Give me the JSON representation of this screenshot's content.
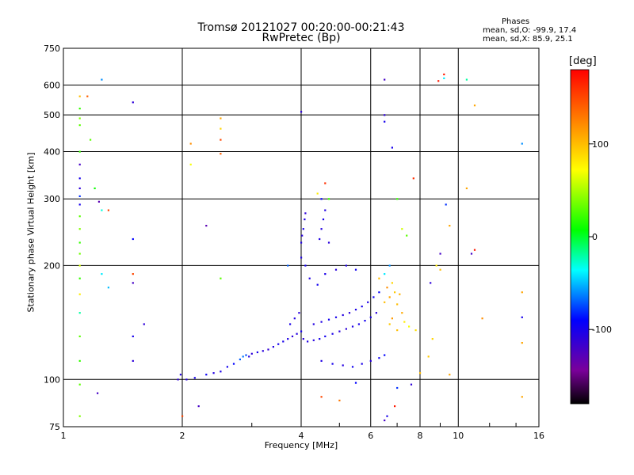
{
  "chart_data": {
    "type": "scatter",
    "title": "Tromsø 20121027 00:20:00-00:21:43",
    "subtitle": "RwPretec (Bp)",
    "xlabel": "Frequency [MHz]",
    "ylabel": "Stationary phase Virtual Height [km]",
    "xscale": "log",
    "yscale": "log",
    "xlim": [
      1,
      16
    ],
    "ylim": [
      75,
      750
    ],
    "x_ticks": [
      1,
      2,
      4,
      6,
      8,
      10,
      16
    ],
    "y_ticks": [
      75,
      100,
      200,
      300,
      400,
      500,
      600,
      750
    ],
    "grid": true,
    "stats": {
      "heading": "Phases",
      "line1": "mean, sd,O: -99.9, 17.4",
      "line2": "mean, sd,X:  85.9, 25.1"
    },
    "colorbar": {
      "label": "[deg]",
      "range": [
        -180,
        180
      ],
      "ticks": [
        100,
        0,
        -100
      ]
    },
    "points": [
      [
        1.95,
        100,
        -110
      ],
      [
        1.98,
        103,
        -105
      ],
      [
        2.05,
        100,
        -108
      ],
      [
        2.15,
        101,
        -100
      ],
      [
        2.3,
        103,
        -95
      ],
      [
        2.4,
        104,
        -105
      ],
      [
        2.5,
        105,
        -102
      ],
      [
        2.6,
        108,
        -98
      ],
      [
        2.7,
        110,
        -90
      ],
      [
        2.8,
        113,
        -70
      ],
      [
        2.85,
        115,
        -65
      ],
      [
        2.9,
        116,
        -75
      ],
      [
        2.95,
        115,
        -105
      ],
      [
        3.0,
        117,
        -110
      ],
      [
        3.1,
        118,
        -100
      ],
      [
        3.2,
        119,
        -108
      ],
      [
        3.3,
        120,
        -112
      ],
      [
        3.4,
        122,
        -105
      ],
      [
        3.5,
        124,
        -98
      ],
      [
        3.6,
        126,
        -100
      ],
      [
        3.7,
        128,
        -104
      ],
      [
        3.8,
        130,
        -110
      ],
      [
        3.9,
        132,
        -106
      ],
      [
        4.0,
        134,
        -100
      ],
      [
        3.75,
        140,
        -102
      ],
      [
        3.85,
        145,
        -105
      ],
      [
        3.95,
        150,
        -108
      ],
      [
        4.05,
        128,
        -110
      ],
      [
        4.15,
        126,
        -104
      ],
      [
        4.3,
        127,
        -106
      ],
      [
        4.45,
        128,
        -100
      ],
      [
        4.6,
        130,
        -98
      ],
      [
        4.8,
        132,
        -102
      ],
      [
        5.0,
        134,
        -108
      ],
      [
        5.2,
        136,
        -110
      ],
      [
        5.4,
        138,
        -104
      ],
      [
        5.6,
        140,
        -100
      ],
      [
        5.8,
        143,
        -98
      ],
      [
        6.0,
        146,
        -102
      ],
      [
        6.2,
        150,
        -108
      ],
      [
        4.3,
        140,
        -105
      ],
      [
        4.5,
        142,
        -104
      ],
      [
        4.7,
        144,
        -98
      ],
      [
        4.9,
        146,
        -100
      ],
      [
        5.1,
        148,
        -106
      ],
      [
        5.3,
        150,
        -108
      ],
      [
        5.5,
        153,
        -102
      ],
      [
        5.7,
        156,
        -100
      ],
      [
        5.9,
        160,
        -104
      ],
      [
        6.1,
        165,
        -96
      ],
      [
        6.3,
        170,
        -92
      ],
      [
        4.5,
        112,
        -104
      ],
      [
        4.8,
        110,
        -100
      ],
      [
        5.1,
        109,
        -106
      ],
      [
        5.4,
        108,
        -98
      ],
      [
        5.7,
        110,
        -102
      ],
      [
        6.0,
        112,
        -108
      ],
      [
        6.3,
        114,
        -96
      ],
      [
        6.5,
        116,
        -90
      ],
      [
        4.0,
        230,
        -104
      ],
      [
        4.02,
        240,
        -108
      ],
      [
        4.05,
        250,
        -100
      ],
      [
        4.08,
        265,
        -104
      ],
      [
        4.1,
        275,
        -110
      ],
      [
        4.45,
        235,
        -104
      ],
      [
        4.5,
        250,
        -106
      ],
      [
        4.55,
        265,
        -100
      ],
      [
        4.6,
        280,
        -104
      ],
      [
        4.7,
        230,
        -108
      ],
      [
        4.0,
        210,
        -104
      ],
      [
        4.1,
        200,
        -100
      ],
      [
        4.2,
        185,
        -104
      ],
      [
        4.4,
        178,
        -98
      ],
      [
        4.6,
        190,
        -102
      ],
      [
        4.9,
        195,
        -108
      ],
      [
        5.2,
        200,
        -104
      ],
      [
        5.5,
        195,
        -98
      ],
      [
        6.5,
        160,
        100
      ],
      [
        6.7,
        165,
        110
      ],
      [
        6.9,
        170,
        95
      ],
      [
        7.1,
        168,
        105
      ],
      [
        6.6,
        175,
        120
      ],
      [
        6.8,
        180,
        90
      ],
      [
        7.0,
        158,
        100
      ],
      [
        7.2,
        150,
        108
      ],
      [
        6.8,
        145,
        115
      ],
      [
        6.7,
        140,
        95
      ],
      [
        7.0,
        135,
        100
      ],
      [
        6.5,
        190,
        -40
      ],
      [
        6.7,
        200,
        -60
      ],
      [
        6.3,
        185,
        100
      ],
      [
        7.3,
        142,
        80
      ],
      [
        7.5,
        138,
        70
      ],
      [
        7.8,
        135,
        85
      ],
      [
        8.6,
        128,
        90
      ],
      [
        8.4,
        115,
        95
      ],
      [
        8.0,
        104,
        100
      ],
      [
        7.6,
        97,
        -110
      ],
      [
        1.1,
        560,
        100
      ],
      [
        1.1,
        520,
        20
      ],
      [
        1.1,
        490,
        40
      ],
      [
        1.1,
        470,
        30
      ],
      [
        1.1,
        400,
        20
      ],
      [
        1.1,
        370,
        -120
      ],
      [
        1.1,
        340,
        -100
      ],
      [
        1.1,
        320,
        -110
      ],
      [
        1.1,
        305,
        -80
      ],
      [
        1.1,
        290,
        -100
      ],
      [
        1.1,
        270,
        30
      ],
      [
        1.1,
        250,
        40
      ],
      [
        1.1,
        230,
        20
      ],
      [
        1.1,
        215,
        35
      ],
      [
        1.1,
        200,
        60
      ],
      [
        1.1,
        185,
        20
      ],
      [
        1.1,
        168,
        80
      ],
      [
        1.1,
        150,
        -20
      ],
      [
        1.1,
        130,
        30
      ],
      [
        1.1,
        112,
        20
      ],
      [
        1.1,
        97,
        30
      ],
      [
        1.1,
        80,
        40
      ],
      [
        1.15,
        560,
        140
      ],
      [
        1.17,
        430,
        30
      ],
      [
        1.2,
        320,
        10
      ],
      [
        1.23,
        295,
        -130
      ],
      [
        1.25,
        280,
        -30
      ],
      [
        1.3,
        280,
        150
      ],
      [
        1.25,
        190,
        -40
      ],
      [
        1.3,
        175,
        -50
      ],
      [
        1.5,
        540,
        -110
      ],
      [
        1.5,
        235,
        -90
      ],
      [
        1.5,
        190,
        150
      ],
      [
        1.5,
        180,
        -120
      ],
      [
        1.5,
        130,
        -100
      ],
      [
        1.6,
        140,
        -110
      ],
      [
        1.5,
        112,
        -110
      ],
      [
        1.22,
        92,
        -120
      ],
      [
        1.25,
        620,
        -60
      ],
      [
        2.1,
        420,
        120
      ],
      [
        2.1,
        370,
        70
      ],
      [
        2.5,
        490,
        110
      ],
      [
        2.5,
        460,
        90
      ],
      [
        2.5,
        430,
        150
      ],
      [
        2.5,
        395,
        140
      ],
      [
        2.3,
        255,
        -130
      ],
      [
        2.5,
        185,
        30
      ],
      [
        2.0,
        80,
        150
      ],
      [
        2.2,
        85,
        -120
      ],
      [
        4.0,
        510,
        -110
      ],
      [
        4.4,
        310,
        80
      ],
      [
        4.5,
        300,
        -90
      ],
      [
        4.6,
        330,
        160
      ],
      [
        4.7,
        300,
        20
      ],
      [
        3.7,
        200,
        -70
      ],
      [
        4.5,
        90,
        150
      ],
      [
        5.0,
        88,
        130
      ],
      [
        5.5,
        98,
        -90
      ],
      [
        6.5,
        620,
        -120
      ],
      [
        6.5,
        500,
        -110
      ],
      [
        6.5,
        480,
        -100
      ],
      [
        6.8,
        410,
        -100
      ],
      [
        7.0,
        300,
        20
      ],
      [
        7.2,
        250,
        60
      ],
      [
        7.4,
        240,
        30
      ],
      [
        7.7,
        340,
        160
      ],
      [
        7.0,
        95,
        -80
      ],
      [
        6.9,
        85,
        170
      ],
      [
        6.6,
        80,
        -100
      ],
      [
        6.5,
        78,
        -120
      ],
      [
        8.5,
        180,
        -110
      ],
      [
        8.8,
        200,
        80
      ],
      [
        9.0,
        195,
        100
      ],
      [
        8.9,
        615,
        170
      ],
      [
        9.2,
        625,
        -40
      ],
      [
        9.2,
        640,
        170
      ],
      [
        9.3,
        290,
        -80
      ],
      [
        9.5,
        255,
        110
      ],
      [
        9.0,
        215,
        -120
      ],
      [
        10.5,
        620,
        -20
      ],
      [
        11.0,
        530,
        110
      ],
      [
        10.5,
        320,
        110
      ],
      [
        10.8,
        215,
        -120
      ],
      [
        11.0,
        220,
        170
      ],
      [
        11.5,
        145,
        120
      ],
      [
        9.5,
        103,
        110
      ],
      [
        14.5,
        420,
        -60
      ],
      [
        14.5,
        170,
        110
      ],
      [
        14.5,
        146,
        -100
      ],
      [
        14.5,
        125,
        110
      ],
      [
        14.5,
        90,
        110
      ]
    ]
  }
}
